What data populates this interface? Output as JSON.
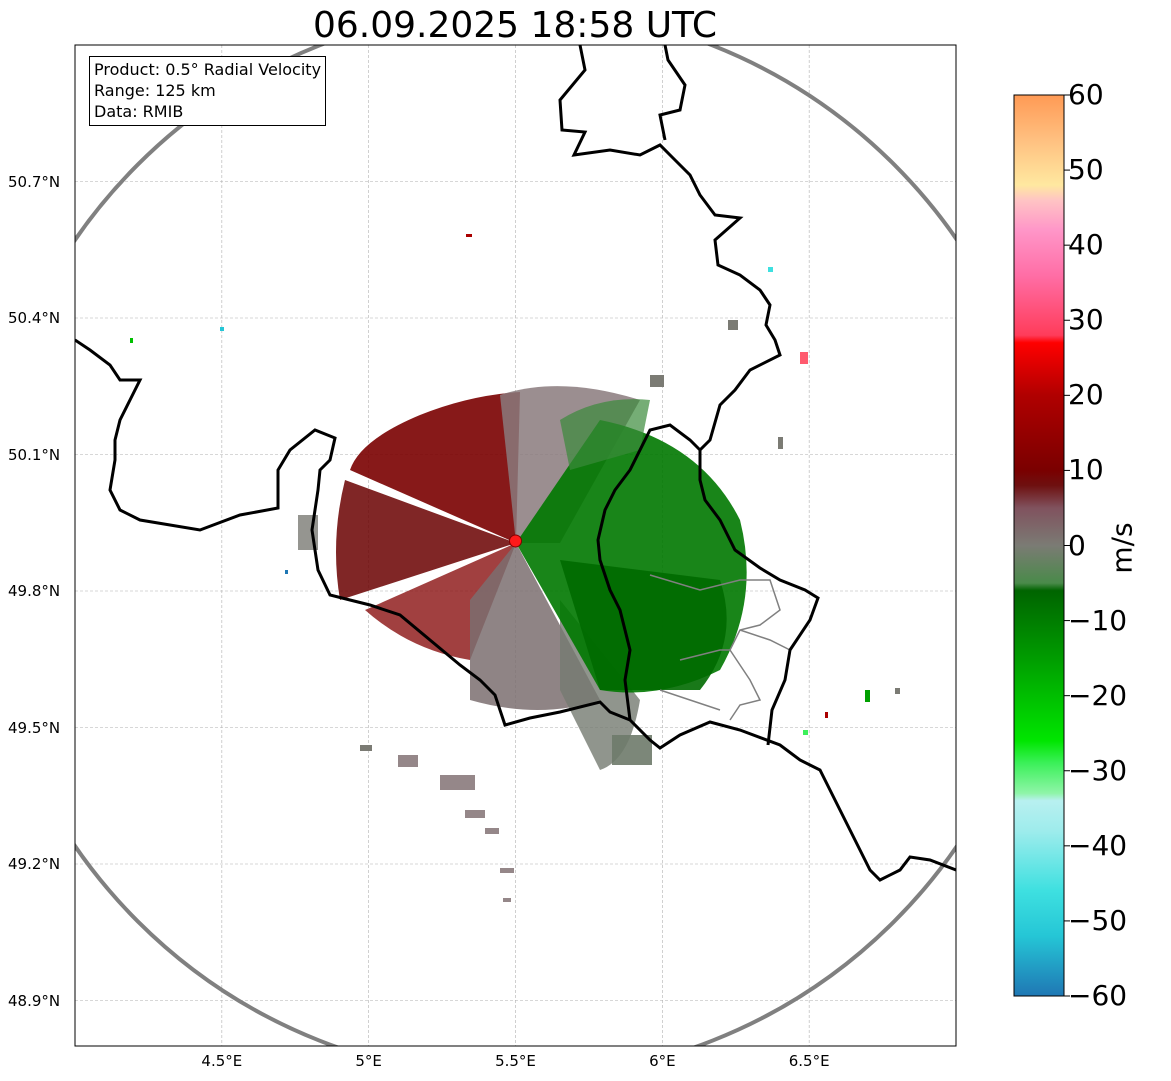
{
  "title": "06.09.2025 18:58 UTC",
  "info": {
    "product": "Product: 0.5° Radial Velocity",
    "range": "Range: 125 km",
    "data": "Data: RMIB"
  },
  "map": {
    "lon_range": [
      4.0,
      7.0
    ],
    "lat_range": [
      48.8,
      51.0
    ],
    "lon_ticks": [
      {
        "value": 4.5,
        "label": "4.5°E"
      },
      {
        "value": 5.0,
        "label": "5°E"
      },
      {
        "value": 5.5,
        "label": "5.5°E"
      },
      {
        "value": 6.0,
        "label": "6°E"
      },
      {
        "value": 6.5,
        "label": "6.5°E"
      }
    ],
    "lat_ticks": [
      {
        "value": 50.7,
        "label": "50.7°N"
      },
      {
        "value": 50.4,
        "label": "50.4°N"
      },
      {
        "value": 50.1,
        "label": "50.1°N"
      },
      {
        "value": 49.8,
        "label": "49.8°N"
      },
      {
        "value": 49.5,
        "label": "49.5°N"
      },
      {
        "value": 49.2,
        "label": "49.2°N"
      },
      {
        "value": 48.9,
        "label": "48.9°N"
      }
    ],
    "radar_site": {
      "lon": 5.5,
      "lat": 49.91
    },
    "grid": true,
    "range_ring_color": "#808080",
    "border_color": "#000000"
  },
  "colorbar": {
    "label": "m/s",
    "min": -60,
    "max": 60,
    "ticks": [
      "60",
      "50",
      "40",
      "30",
      "20",
      "10",
      "0",
      "−10",
      "−20",
      "−30",
      "−40",
      "−50",
      "−60"
    ],
    "stops": [
      {
        "v": -60,
        "c": "#1f77b4"
      },
      {
        "v": -52,
        "c": "#25c6d6"
      },
      {
        "v": -46,
        "c": "#3ee0e0"
      },
      {
        "v": -38,
        "c": "#9eecec"
      },
      {
        "v": -34,
        "c": "#b8f0f0"
      },
      {
        "v": -33,
        "c": "#8ff5a8"
      },
      {
        "v": -29,
        "c": "#3cf05a"
      },
      {
        "v": -26,
        "c": "#00e600"
      },
      {
        "v": -15,
        "c": "#009c00"
      },
      {
        "v": -6,
        "c": "#006400"
      },
      {
        "v": -5,
        "c": "#4a8a4a"
      },
      {
        "v": 0,
        "c": "#7b7b74"
      },
      {
        "v": 5,
        "c": "#80525e"
      },
      {
        "v": 8,
        "c": "#6e1010"
      },
      {
        "v": 10,
        "c": "#7a0000"
      },
      {
        "v": 20,
        "c": "#b00000"
      },
      {
        "v": 27,
        "c": "#ff0000"
      },
      {
        "v": 28,
        "c": "#ff3c5a"
      },
      {
        "v": 36,
        "c": "#ff6ea6"
      },
      {
        "v": 42,
        "c": "#ff96c8"
      },
      {
        "v": 46,
        "c": "#ffc4c4"
      },
      {
        "v": 48,
        "c": "#ffe8a0"
      },
      {
        "v": 54,
        "c": "#ffc080"
      },
      {
        "v": 60,
        "c": "#ff9a55"
      }
    ]
  }
}
